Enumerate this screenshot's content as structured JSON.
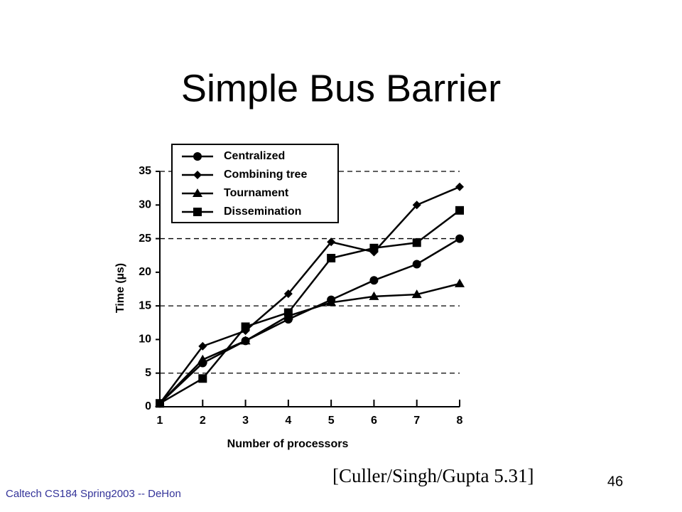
{
  "slide": {
    "title": "Simple Bus Barrier",
    "citation": "[Culler/Singh/Gupta 5.31]",
    "page_number": "46",
    "footer": "Caltech CS184 Spring2003 -- DeHon"
  },
  "chart_data": {
    "type": "line",
    "xlabel": "Number of processors",
    "ylabel": "Time (µs)",
    "x": [
      1,
      2,
      3,
      4,
      5,
      6,
      7,
      8
    ],
    "xlim": [
      1,
      8
    ],
    "xticks": [
      1,
      2,
      3,
      4,
      5,
      6,
      7,
      8
    ],
    "ylim": [
      0,
      35
    ],
    "yticks": [
      0,
      5,
      10,
      15,
      20,
      25,
      30,
      35
    ],
    "grid": true,
    "series": [
      {
        "name": "Centralized",
        "color": "#000000",
        "marker": "circle",
        "values": [
          0.5,
          6.5,
          9.8,
          13,
          15.9,
          18.8,
          21.2,
          25
        ]
      },
      {
        "name": "Combining tree",
        "color": "#000000",
        "marker": "diamond",
        "values": [
          0.5,
          9,
          11.3,
          16.8,
          24.5,
          23,
          30,
          32.7
        ]
      },
      {
        "name": "Tournament",
        "color": "#000000",
        "marker": "triangle",
        "values": [
          0.5,
          7,
          9.8,
          13.5,
          15.5,
          16.4,
          16.7,
          18.3
        ]
      },
      {
        "name": "Dissemination",
        "color": "#000000",
        "marker": "square",
        "values": [
          0.5,
          4.2,
          11.9,
          14,
          22.1,
          23.6,
          24.4,
          29.2
        ]
      }
    ]
  }
}
